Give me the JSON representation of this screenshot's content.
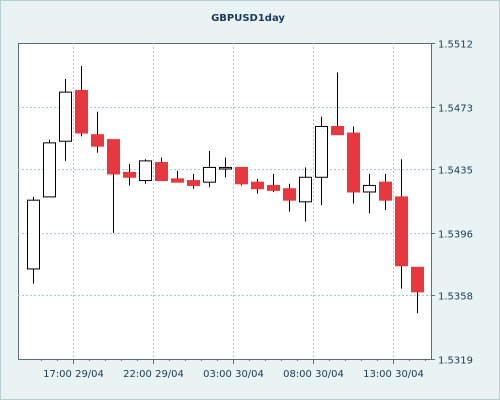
{
  "chart_data": {
    "type": "candlestick",
    "title": "GBPUSD1day",
    "xlabel": "",
    "ylabel": "",
    "ylim": [
      1.5319,
      1.5512
    ],
    "y_ticks": [
      "1.5512",
      "1.5473",
      "1.5435",
      "1.5396",
      "1.5358",
      "1.5319"
    ],
    "x_ticks": [
      {
        "label": "17:00 29/04",
        "index": 2.5
      },
      {
        "label": "22:00 29/04",
        "index": 7.5
      },
      {
        "label": "03:00 30/04",
        "index": 12.5
      },
      {
        "label": "08:00 30/04",
        "index": 17.5
      },
      {
        "label": "13:00 30/04",
        "index": 22.5
      }
    ],
    "grid": true,
    "colors": {
      "background": "#eaf3f4",
      "plot": "#ffffff",
      "grid": "#9ad0d0",
      "up_fill": "#ffffff",
      "down_fill": "#e8383f",
      "outline": "#000000",
      "text": "#1a3a5a"
    },
    "candles": [
      {
        "open": 1.5374,
        "high": 1.5418,
        "low": 1.5365,
        "close": 1.5416
      },
      {
        "open": 1.5418,
        "high": 1.5453,
        "low": 1.5418,
        "close": 1.5451
      },
      {
        "open": 1.5452,
        "high": 1.549,
        "low": 1.544,
        "close": 1.5482
      },
      {
        "open": 1.5483,
        "high": 1.5498,
        "low": 1.5455,
        "close": 1.5457
      },
      {
        "open": 1.5456,
        "high": 1.547,
        "low": 1.5445,
        "close": 1.5449
      },
      {
        "open": 1.5453,
        "high": 1.5453,
        "low": 1.5396,
        "close": 1.5432
      },
      {
        "open": 1.5433,
        "high": 1.5438,
        "low": 1.5425,
        "close": 1.543
      },
      {
        "open": 1.5428,
        "high": 1.5441,
        "low": 1.5426,
        "close": 1.544
      },
      {
        "open": 1.5439,
        "high": 1.5442,
        "low": 1.5428,
        "close": 1.5428
      },
      {
        "open": 1.5429,
        "high": 1.5434,
        "low": 1.5427,
        "close": 1.5427
      },
      {
        "open": 1.5428,
        "high": 1.5432,
        "low": 1.5423,
        "close": 1.5425
      },
      {
        "open": 1.5427,
        "high": 1.5446,
        "low": 1.5424,
        "close": 1.5436
      },
      {
        "open": 1.5436,
        "high": 1.5442,
        "low": 1.543,
        "close": 1.5436
      },
      {
        "open": 1.5436,
        "high": 1.5436,
        "low": 1.5425,
        "close": 1.5426
      },
      {
        "open": 1.5427,
        "high": 1.5429,
        "low": 1.542,
        "close": 1.5423
      },
      {
        "open": 1.5425,
        "high": 1.5432,
        "low": 1.5421,
        "close": 1.5422
      },
      {
        "open": 1.5423,
        "high": 1.5426,
        "low": 1.5409,
        "close": 1.5416
      },
      {
        "open": 1.5415,
        "high": 1.5436,
        "low": 1.5403,
        "close": 1.543
      },
      {
        "open": 1.543,
        "high": 1.5467,
        "low": 1.5413,
        "close": 1.5461
      },
      {
        "open": 1.5461,
        "high": 1.5494,
        "low": 1.5456,
        "close": 1.5456
      },
      {
        "open": 1.5457,
        "high": 1.5461,
        "low": 1.5414,
        "close": 1.5421
      },
      {
        "open": 1.5421,
        "high": 1.5432,
        "low": 1.5408,
        "close": 1.5425
      },
      {
        "open": 1.5427,
        "high": 1.5432,
        "low": 1.541,
        "close": 1.5416
      },
      {
        "open": 1.5418,
        "high": 1.5441,
        "low": 1.5362,
        "close": 1.5376
      },
      {
        "open": 1.5375,
        "high": 1.5375,
        "low": 1.5347,
        "close": 1.536
      }
    ]
  }
}
